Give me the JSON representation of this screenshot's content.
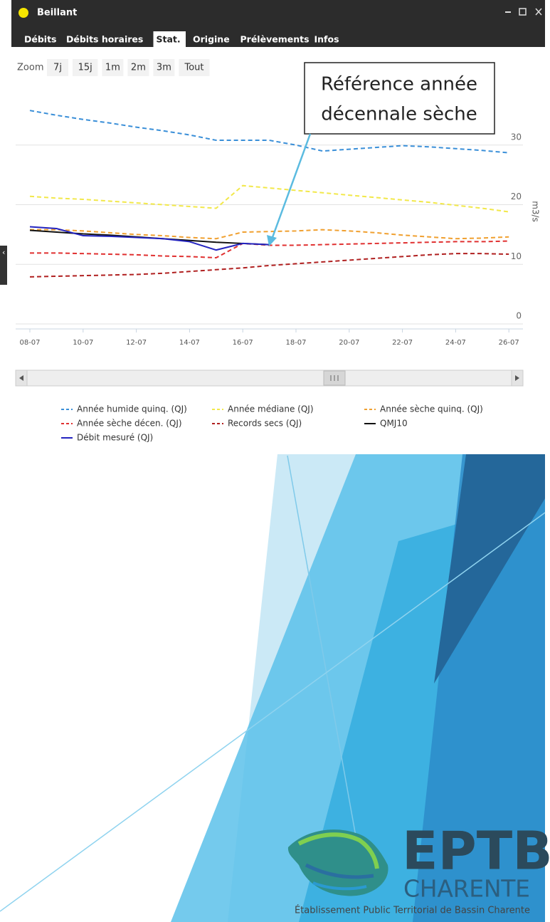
{
  "window": {
    "title": "Beillant",
    "tabs": [
      "Débits",
      "Débits horaires",
      "Stat.",
      "Origine",
      "Prélèvements",
      "Infos"
    ],
    "selected_tab": 2
  },
  "zoom": {
    "label": "Zoom",
    "buttons": [
      "7j",
      "15j",
      "1m",
      "2m",
      "3m",
      "Tout"
    ]
  },
  "annotation": {
    "lines": [
      "Référence année",
      "décennale sèche"
    ]
  },
  "logo": {
    "name": "EPTB",
    "subname": "CHARENTE",
    "tagline": "Établissement Public Territorial de Bassin Charente"
  },
  "chart_data": {
    "type": "line",
    "y_label": "m3/s",
    "categories": [
      "08-07",
      null,
      "10-07",
      null,
      "12-07",
      null,
      "14-07",
      null,
      "16-07",
      null,
      "18-07",
      null,
      "20-07",
      null,
      "22-07",
      null,
      "24-07",
      null,
      "26-07"
    ],
    "ylim": [
      0,
      40
    ],
    "yticks": [
      0,
      10,
      20,
      30
    ],
    "grid": true,
    "series": [
      {
        "name": "Année humide quinq. (QJ)",
        "color": "#3a8fd8",
        "dashed": true,
        "values": [
          35.8,
          35.0,
          34.3,
          33.7,
          33.0,
          32.4,
          31.7,
          30.8,
          30.8,
          30.8,
          30.0,
          29.0,
          29.3,
          29.6,
          29.9,
          29.7,
          29.4,
          29.1,
          28.7
        ]
      },
      {
        "name": "Année médiane (QJ)",
        "color": "#f2e84a",
        "dashed": true,
        "values": [
          21.4,
          21.1,
          20.9,
          20.6,
          20.3,
          20.0,
          19.7,
          19.4,
          23.2,
          22.8,
          22.4,
          22.0,
          21.6,
          21.2,
          20.8,
          20.4,
          19.9,
          19.4,
          18.8
        ]
      },
      {
        "name": "Année sèche quinq. (QJ)",
        "color": "#f0a030",
        "dashed": true,
        "values": [
          15.8,
          15.8,
          15.6,
          15.3,
          15.0,
          14.8,
          14.5,
          14.3,
          15.4,
          15.5,
          15.6,
          15.8,
          15.6,
          15.3,
          14.9,
          14.6,
          14.3,
          14.4,
          14.6
        ]
      },
      {
        "name": "Année sèche décen. (QJ)",
        "color": "#e03030",
        "dashed": true,
        "values": [
          11.9,
          11.9,
          11.8,
          11.7,
          11.6,
          11.4,
          11.3,
          11.1,
          13.5,
          13.2,
          13.2,
          13.3,
          13.4,
          13.5,
          13.6,
          13.7,
          13.8,
          13.8,
          13.9
        ]
      },
      {
        "name": "Records secs (QJ)",
        "color": "#b02020",
        "dashed": true,
        "values": [
          7.9,
          8.0,
          8.1,
          8.2,
          8.3,
          8.5,
          8.8,
          9.1,
          9.4,
          9.8,
          10.1,
          10.4,
          10.7,
          11.0,
          11.3,
          11.6,
          11.8,
          11.8,
          11.7
        ]
      },
      {
        "name": "QMJ10",
        "color": "#111111",
        "dashed": false,
        "values": [
          15.7,
          15.4,
          15.1,
          14.9,
          14.6,
          14.3,
          14.0,
          13.7,
          13.5,
          13.3,
          null,
          null,
          null,
          null,
          null,
          null,
          null,
          null,
          null
        ]
      },
      {
        "name": "Débit mesuré (QJ)",
        "color": "#2424c0",
        "dashed": false,
        "values": [
          16.3,
          16.0,
          14.8,
          14.7,
          14.5,
          14.3,
          13.8,
          12.4,
          13.5,
          13.3,
          null,
          null,
          null,
          null,
          null,
          null,
          null,
          null,
          null
        ]
      }
    ]
  }
}
